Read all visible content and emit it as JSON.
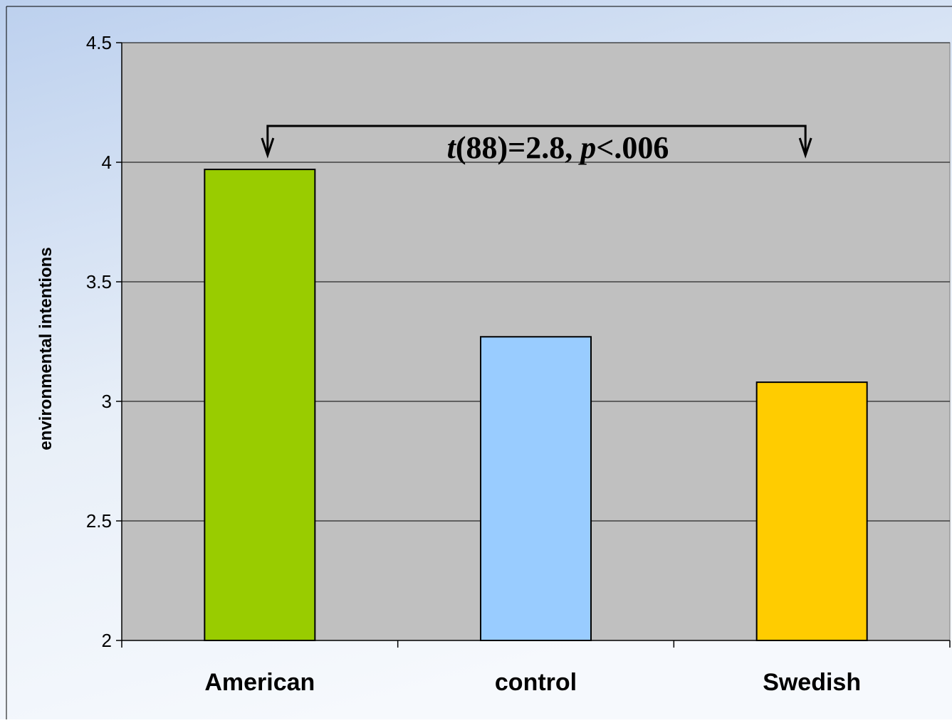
{
  "chart_data": {
    "type": "bar",
    "title": "",
    "xlabel": "",
    "ylabel": "environmental intentions",
    "categories": [
      "American",
      "control",
      "Swedish"
    ],
    "values": [
      3.97,
      3.27,
      3.08
    ],
    "bar_colors": [
      "#99CC00",
      "#99CCFF",
      "#FFCC00"
    ],
    "ylim": [
      2,
      4.5
    ],
    "yticks": [
      2,
      2.5,
      3,
      3.5,
      4,
      4.5
    ],
    "ytick_labels": [
      "2",
      "2.5",
      "3",
      "3.5",
      "4",
      "4.5"
    ],
    "grid": "horizontal",
    "legend": "none",
    "plot_background": "#C0C0C0",
    "annotation": {
      "italic_t": "t",
      "text_mid": "(88)=2.8, ",
      "italic_p": "p",
      "text_end": "<.006",
      "from_category": "American",
      "to_category": "Swedish"
    }
  }
}
